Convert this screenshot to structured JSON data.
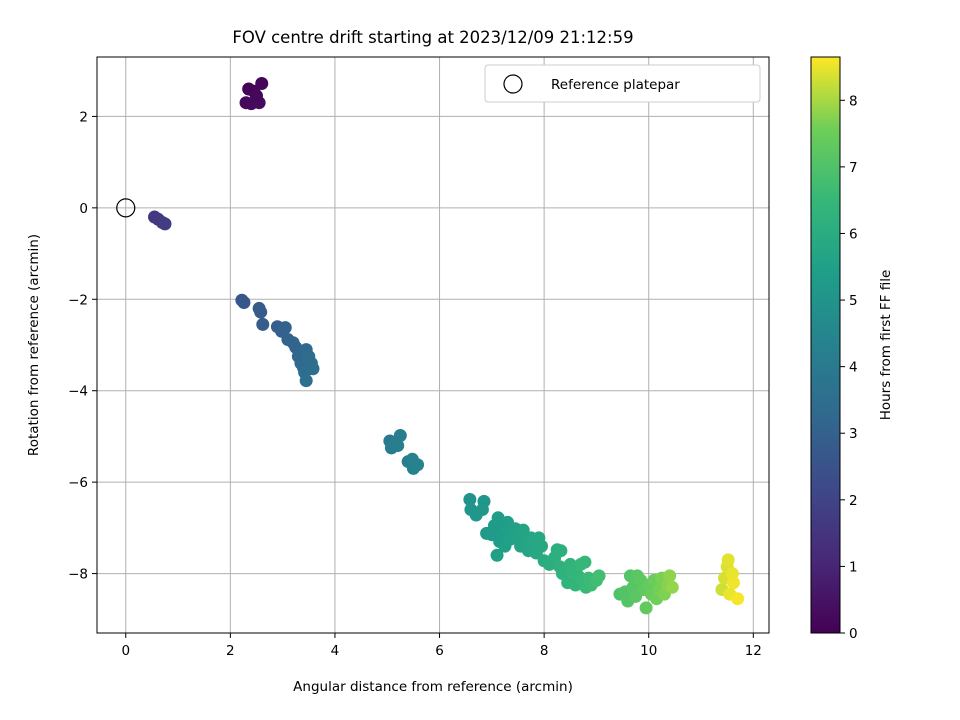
{
  "chart_data": {
    "type": "scatter",
    "title": "FOV centre drift starting at 2023/12/09 21:12:59",
    "xlabel": "Angular distance from reference (arcmin)",
    "ylabel": "Rotation from reference (arcmin)",
    "xlim": [
      -0.55,
      12.3
    ],
    "ylim": [
      -9.3,
      3.3
    ],
    "xticks": [
      0,
      2,
      4,
      6,
      8,
      10,
      12
    ],
    "yticks": [
      -8,
      -6,
      -4,
      -2,
      0,
      2
    ],
    "grid": true,
    "legend": {
      "position": "top-right",
      "entries": [
        {
          "label": "Reference platepar",
          "marker": "open-circle"
        }
      ]
    },
    "reference_point": {
      "x": 0,
      "y": 0
    },
    "colorbar": {
      "label": "Hours from first FF file",
      "colormap": "viridis",
      "range": [
        0,
        8.65
      ],
      "ticks": [
        0,
        1,
        2,
        3,
        4,
        5,
        6,
        7,
        8
      ]
    },
    "points": [
      {
        "x": 2.35,
        "y": 2.6,
        "c": 0.05
      },
      {
        "x": 2.45,
        "y": 2.55,
        "c": 0.1
      },
      {
        "x": 2.6,
        "y": 2.72,
        "c": 0.15
      },
      {
        "x": 2.3,
        "y": 2.3,
        "c": 0.2
      },
      {
        "x": 2.4,
        "y": 2.28,
        "c": 0.25
      },
      {
        "x": 2.55,
        "y": 2.3,
        "c": 0.3
      },
      {
        "x": 2.5,
        "y": 2.45,
        "c": 0.2
      },
      {
        "x": 0.55,
        "y": -0.2,
        "c": 1.6
      },
      {
        "x": 0.62,
        "y": -0.25,
        "c": 1.65
      },
      {
        "x": 0.7,
        "y": -0.32,
        "c": 1.7
      },
      {
        "x": 0.75,
        "y": -0.35,
        "c": 1.75
      },
      {
        "x": 2.22,
        "y": -2.02,
        "c": 2.6
      },
      {
        "x": 2.26,
        "y": -2.07,
        "c": 2.65
      },
      {
        "x": 2.55,
        "y": -2.2,
        "c": 2.75
      },
      {
        "x": 2.58,
        "y": -2.28,
        "c": 2.8
      },
      {
        "x": 2.62,
        "y": -2.55,
        "c": 2.85
      },
      {
        "x": 2.9,
        "y": -2.6,
        "c": 2.9
      },
      {
        "x": 2.98,
        "y": -2.7,
        "c": 2.95
      },
      {
        "x": 3.05,
        "y": -2.62,
        "c": 3.0
      },
      {
        "x": 3.1,
        "y": -2.88,
        "c": 3.05
      },
      {
        "x": 3.2,
        "y": -2.95,
        "c": 3.1
      },
      {
        "x": 3.25,
        "y": -3.05,
        "c": 3.15
      },
      {
        "x": 3.3,
        "y": -3.25,
        "c": 3.2
      },
      {
        "x": 3.35,
        "y": -3.4,
        "c": 3.25
      },
      {
        "x": 3.4,
        "y": -3.5,
        "c": 3.3
      },
      {
        "x": 3.45,
        "y": -3.1,
        "c": 3.3
      },
      {
        "x": 3.5,
        "y": -3.25,
        "c": 3.35
      },
      {
        "x": 3.55,
        "y": -3.4,
        "c": 3.4
      },
      {
        "x": 3.42,
        "y": -3.6,
        "c": 3.45
      },
      {
        "x": 3.45,
        "y": -3.78,
        "c": 3.5
      },
      {
        "x": 3.58,
        "y": -3.52,
        "c": 3.5
      },
      {
        "x": 3.48,
        "y": -3.3,
        "c": 3.4
      },
      {
        "x": 5.05,
        "y": -5.1,
        "c": 4.0
      },
      {
        "x": 5.08,
        "y": -5.25,
        "c": 4.05
      },
      {
        "x": 5.15,
        "y": -5.15,
        "c": 4.1
      },
      {
        "x": 5.25,
        "y": -4.98,
        "c": 4.1
      },
      {
        "x": 5.2,
        "y": -5.2,
        "c": 4.15
      },
      {
        "x": 5.4,
        "y": -5.55,
        "c": 4.2
      },
      {
        "x": 5.48,
        "y": -5.5,
        "c": 4.25
      },
      {
        "x": 5.5,
        "y": -5.7,
        "c": 4.3
      },
      {
        "x": 5.58,
        "y": -5.62,
        "c": 4.35
      },
      {
        "x": 6.58,
        "y": -6.38,
        "c": 5.0
      },
      {
        "x": 6.6,
        "y": -6.6,
        "c": 5.05
      },
      {
        "x": 6.7,
        "y": -6.72,
        "c": 5.1
      },
      {
        "x": 6.85,
        "y": -6.42,
        "c": 5.1
      },
      {
        "x": 6.82,
        "y": -6.6,
        "c": 5.15
      },
      {
        "x": 6.9,
        "y": -7.12,
        "c": 5.2
      },
      {
        "x": 7.0,
        "y": -7.15,
        "c": 5.25
      },
      {
        "x": 7.05,
        "y": -6.95,
        "c": 5.3
      },
      {
        "x": 7.1,
        "y": -7.0,
        "c": 5.3
      },
      {
        "x": 7.12,
        "y": -6.78,
        "c": 5.35
      },
      {
        "x": 7.15,
        "y": -7.3,
        "c": 5.35
      },
      {
        "x": 7.2,
        "y": -7.15,
        "c": 5.4
      },
      {
        "x": 7.28,
        "y": -7.05,
        "c": 5.45
      },
      {
        "x": 7.3,
        "y": -6.88,
        "c": 5.45
      },
      {
        "x": 7.25,
        "y": -7.4,
        "c": 5.5
      },
      {
        "x": 7.1,
        "y": -7.6,
        "c": 5.5
      },
      {
        "x": 7.35,
        "y": -7.25,
        "c": 5.55
      },
      {
        "x": 7.45,
        "y": -7.02,
        "c": 5.55
      },
      {
        "x": 7.5,
        "y": -7.2,
        "c": 5.6
      },
      {
        "x": 7.55,
        "y": -7.4,
        "c": 5.6
      },
      {
        "x": 7.6,
        "y": -7.05,
        "c": 5.65
      },
      {
        "x": 7.65,
        "y": -7.3,
        "c": 5.7
      },
      {
        "x": 7.7,
        "y": -7.5,
        "c": 5.7
      },
      {
        "x": 7.75,
        "y": -7.22,
        "c": 5.75
      },
      {
        "x": 7.8,
        "y": -7.35,
        "c": 5.8
      },
      {
        "x": 7.85,
        "y": -7.55,
        "c": 5.8
      },
      {
        "x": 7.95,
        "y": -7.4,
        "c": 5.85
      },
      {
        "x": 7.9,
        "y": -7.22,
        "c": 5.85
      },
      {
        "x": 8.0,
        "y": -7.72,
        "c": 6.0
      },
      {
        "x": 8.1,
        "y": -7.8,
        "c": 6.05
      },
      {
        "x": 8.2,
        "y": -7.65,
        "c": 6.1
      },
      {
        "x": 8.25,
        "y": -7.48,
        "c": 6.1
      },
      {
        "x": 8.32,
        "y": -7.5,
        "c": 6.15
      },
      {
        "x": 8.3,
        "y": -7.85,
        "c": 6.2
      },
      {
        "x": 8.35,
        "y": -8.0,
        "c": 6.25
      },
      {
        "x": 8.45,
        "y": -8.2,
        "c": 6.3
      },
      {
        "x": 8.5,
        "y": -7.8,
        "c": 6.3
      },
      {
        "x": 8.55,
        "y": -7.95,
        "c": 6.35
      },
      {
        "x": 8.6,
        "y": -8.25,
        "c": 6.4
      },
      {
        "x": 8.65,
        "y": -8.05,
        "c": 6.45
      },
      {
        "x": 8.7,
        "y": -7.8,
        "c": 6.5
      },
      {
        "x": 8.75,
        "y": -8.15,
        "c": 6.5
      },
      {
        "x": 8.8,
        "y": -8.3,
        "c": 6.55
      },
      {
        "x": 8.85,
        "y": -8.1,
        "c": 6.6
      },
      {
        "x": 8.9,
        "y": -8.25,
        "c": 6.65
      },
      {
        "x": 9.0,
        "y": -8.15,
        "c": 6.7
      },
      {
        "x": 9.05,
        "y": -8.05,
        "c": 6.75
      },
      {
        "x": 8.78,
        "y": -7.75,
        "c": 6.5
      },
      {
        "x": 9.45,
        "y": -8.45,
        "c": 7.0
      },
      {
        "x": 9.55,
        "y": -8.4,
        "c": 7.05
      },
      {
        "x": 9.6,
        "y": -8.6,
        "c": 7.1
      },
      {
        "x": 9.65,
        "y": -8.05,
        "c": 7.1
      },
      {
        "x": 9.7,
        "y": -8.3,
        "c": 7.15
      },
      {
        "x": 9.75,
        "y": -8.5,
        "c": 7.2
      },
      {
        "x": 9.78,
        "y": -8.05,
        "c": 7.2
      },
      {
        "x": 9.85,
        "y": -8.15,
        "c": 7.25
      },
      {
        "x": 9.9,
        "y": -8.35,
        "c": 7.3
      },
      {
        "x": 9.95,
        "y": -8.75,
        "c": 7.35
      },
      {
        "x": 10.0,
        "y": -8.25,
        "c": 7.4
      },
      {
        "x": 10.05,
        "y": -8.45,
        "c": 7.45
      },
      {
        "x": 10.1,
        "y": -8.15,
        "c": 7.5
      },
      {
        "x": 10.15,
        "y": -8.55,
        "c": 7.55
      },
      {
        "x": 10.2,
        "y": -8.35,
        "c": 7.6
      },
      {
        "x": 10.25,
        "y": -8.1,
        "c": 7.65
      },
      {
        "x": 10.3,
        "y": -8.45,
        "c": 7.7
      },
      {
        "x": 10.35,
        "y": -8.25,
        "c": 7.75
      },
      {
        "x": 10.4,
        "y": -8.05,
        "c": 7.8
      },
      {
        "x": 10.45,
        "y": -8.3,
        "c": 7.85
      },
      {
        "x": 11.4,
        "y": -8.35,
        "c": 8.3
      },
      {
        "x": 11.45,
        "y": -8.1,
        "c": 8.35
      },
      {
        "x": 11.5,
        "y": -7.85,
        "c": 8.4
      },
      {
        "x": 11.52,
        "y": -7.7,
        "c": 8.45
      },
      {
        "x": 11.55,
        "y": -8.45,
        "c": 8.5
      },
      {
        "x": 11.6,
        "y": -8.0,
        "c": 8.5
      },
      {
        "x": 11.62,
        "y": -8.2,
        "c": 8.55
      },
      {
        "x": 11.7,
        "y": -8.55,
        "c": 8.6
      }
    ]
  }
}
